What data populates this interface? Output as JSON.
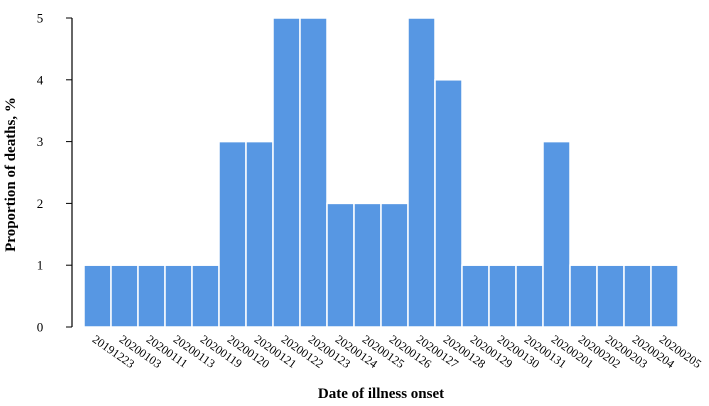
{
  "chart_data": {
    "type": "bar",
    "xlabel": "Date of illness onset",
    "ylabel": "Proportion of deaths, %",
    "ylim": [
      0,
      5
    ],
    "yticks": [
      0,
      1,
      2,
      3,
      4,
      5
    ],
    "grid": false,
    "categories": [
      "20191223",
      "20200103",
      "20200111",
      "20200113",
      "20200119",
      "20200120",
      "20200121",
      "20200122",
      "20200123",
      "20200124",
      "20200125",
      "20200126",
      "20200127",
      "20200128",
      "20200129",
      "20200130",
      "20200131",
      "20200201",
      "20200202",
      "20200203",
      "20200204",
      "20200205"
    ],
    "values": [
      1,
      1,
      1,
      1,
      1,
      3,
      3,
      5,
      5,
      2,
      2,
      2,
      5,
      4,
      1,
      1,
      1,
      3,
      1,
      1,
      1,
      1
    ],
    "bar_color": "#5797e3"
  }
}
